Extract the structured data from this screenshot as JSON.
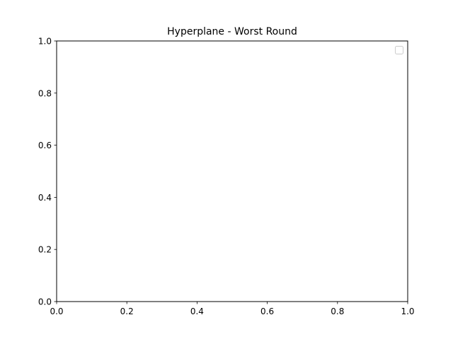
{
  "chart_data": {
    "type": "line",
    "title": "Hyperplane - Worst Round",
    "xlabel": "",
    "ylabel": "",
    "xlim": [
      0.0,
      1.0
    ],
    "ylim": [
      0.0,
      1.0
    ],
    "x_ticks": [
      "0.0",
      "0.2",
      "0.4",
      "0.6",
      "0.8",
      "1.0"
    ],
    "y_ticks": [
      "0.0",
      "0.2",
      "0.4",
      "0.6",
      "0.8",
      "1.0"
    ],
    "grid": false,
    "legend": {
      "position": "upper-right",
      "entries": []
    },
    "series": []
  }
}
